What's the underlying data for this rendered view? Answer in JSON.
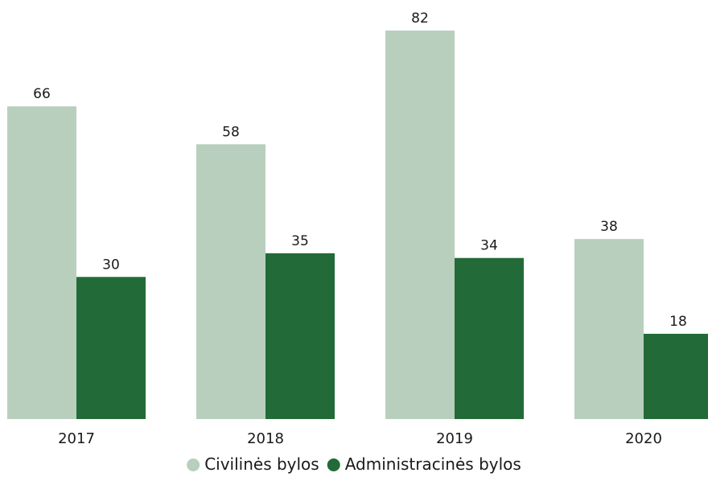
{
  "chart_data": {
    "type": "bar",
    "title": "",
    "xlabel": "",
    "ylabel": "",
    "categories": [
      "2017",
      "2018",
      "2019",
      "2020"
    ],
    "series": [
      {
        "name": "Civilinės bylos",
        "values": [
          66,
          58,
          82,
          38
        ],
        "color": "#b8cfbd"
      },
      {
        "name": "Administracinės bylos",
        "values": [
          30,
          35,
          34,
          18
        ],
        "color": "#226b38"
      }
    ],
    "ylim": [
      0,
      82
    ],
    "grid": false,
    "data_labels": true,
    "legend_position": "bottom-center"
  }
}
